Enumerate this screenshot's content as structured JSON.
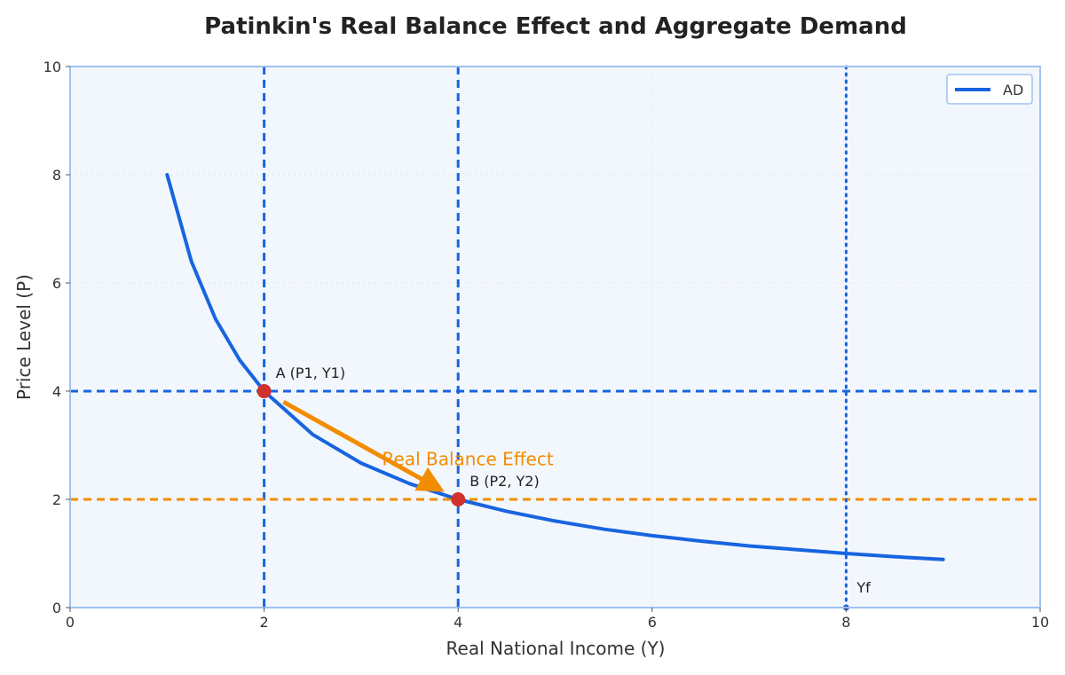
{
  "chart_data": {
    "type": "line",
    "title": "Patinkin's Real Balance Effect and Aggregate Demand",
    "xlabel": "Real National Income (Y)",
    "ylabel": "Price Level (P)",
    "xlim": [
      0,
      10
    ],
    "ylim": [
      0,
      10
    ],
    "x_ticks": [
      0,
      2,
      4,
      6,
      8,
      10
    ],
    "y_ticks": [
      0,
      2,
      4,
      6,
      8,
      10
    ],
    "grid": true,
    "legend_position": "top-right",
    "series": [
      {
        "name": "AD",
        "color": "#1864e0",
        "x": [
          1,
          1.25,
          1.5,
          1.75,
          2,
          2.5,
          3,
          3.5,
          4,
          4.5,
          5,
          5.5,
          6,
          6.5,
          7,
          7.5,
          8,
          8.5,
          9
        ],
        "y": [
          8,
          6.4,
          5.33,
          4.57,
          4,
          3.2,
          2.67,
          2.29,
          2,
          1.78,
          1.6,
          1.45,
          1.33,
          1.23,
          1.14,
          1.07,
          1,
          0.94,
          0.89
        ]
      }
    ],
    "points": [
      {
        "x": 2,
        "y": 4,
        "label": "A (P1, Y1)",
        "color": "#d0312d"
      },
      {
        "x": 4,
        "y": 2,
        "label": "B (P2, Y2)",
        "color": "#d0312d"
      }
    ],
    "reference_lines": [
      {
        "orientation": "vertical",
        "value": 2,
        "style": "dashed",
        "color": "#1864e0"
      },
      {
        "orientation": "vertical",
        "value": 4,
        "style": "dashed",
        "color": "#1864e0"
      },
      {
        "orientation": "horizontal",
        "value": 4,
        "style": "dashed",
        "color": "#1864e0"
      },
      {
        "orientation": "horizontal",
        "value": 2,
        "style": "dashed",
        "color": "#f28c00"
      },
      {
        "orientation": "vertical",
        "value": 8,
        "style": "dotted",
        "color": "#1864e0"
      }
    ],
    "yf": {
      "x": 8,
      "y": 0,
      "label": "Yf",
      "color": "#1864e0"
    },
    "arrow": {
      "from": [
        2.2,
        3.8
      ],
      "to": [
        3.8,
        2.2
      ],
      "label": "Real Balance Effect",
      "label_at": [
        4.1,
        2.75
      ],
      "color": "#f28c00"
    },
    "colors": {
      "plot_background": "#f2f7fd",
      "frame": "#9fc2f2",
      "grid": "#dde6f2"
    }
  }
}
